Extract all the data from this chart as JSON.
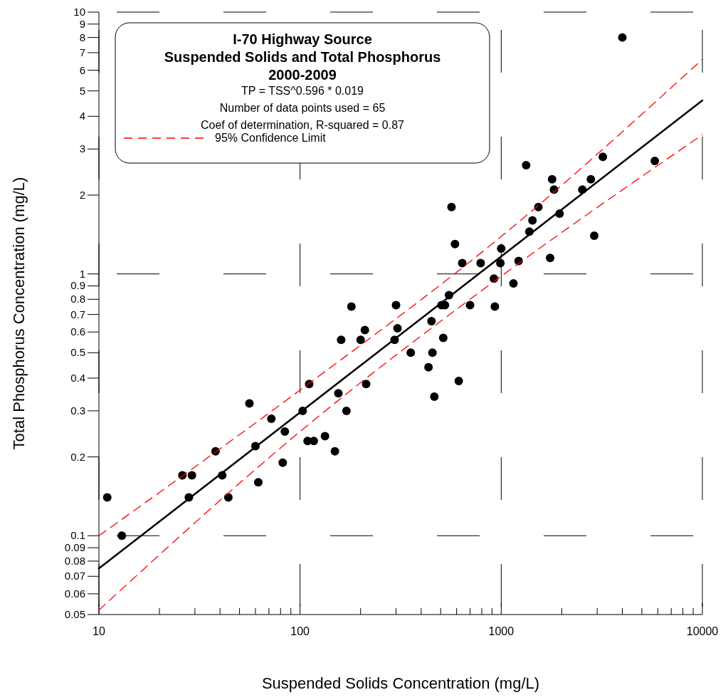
{
  "chart_data": {
    "type": "scatter",
    "title": "I-70 Highway Source\nSuspended Solids and Total Phosphorus\n2000-2009",
    "annotations": [
      "TP = TSS^0.596 * 0.019",
      "Number of data points used = 65",
      "Coef of determination, R-squared = 0.87"
    ],
    "xlabel": "Suspended Solids Concentration (mg/L)",
    "ylabel": "Total Phosphorus Concentration (mg/L)",
    "log": "xy",
    "grid": true,
    "legend": "top left",
    "marker": "circle",
    "xlim": [
      10,
      10000
    ],
    "ylim": [
      0.05,
      10
    ],
    "xticks": [
      10,
      {
        "value": 20,
        "label": null
      },
      {
        "value": 30,
        "label": null
      },
      {
        "value": 40,
        "label": null
      },
      {
        "value": 50,
        "label": null
      },
      {
        "value": 60,
        "label": null
      },
      {
        "value": 70,
        "label": null
      },
      {
        "value": 80,
        "label": null
      },
      {
        "value": 90,
        "label": null
      },
      100,
      {
        "value": 200,
        "label": null
      },
      {
        "value": 300,
        "label": null
      },
      {
        "value": 400,
        "label": null
      },
      {
        "value": 500,
        "label": null
      },
      {
        "value": 600,
        "label": null
      },
      {
        "value": 700,
        "label": null
      },
      {
        "value": 800,
        "label": null
      },
      {
        "value": 900,
        "label": null
      },
      1000,
      {
        "value": 2000,
        "label": null
      },
      {
        "value": 3000,
        "label": null
      },
      {
        "value": 4000,
        "label": null
      },
      {
        "value": 5000,
        "label": null
      },
      {
        "value": 6000,
        "label": null
      },
      {
        "value": 7000,
        "label": null
      },
      {
        "value": 8000,
        "label": null
      },
      {
        "value": 9000,
        "label": null
      },
      10000
    ],
    "yticks": [
      0.05,
      0.06,
      0.07,
      0.08,
      0.09,
      0.1,
      0.2,
      0.3,
      0.4,
      0.5,
      0.6,
      0.7,
      0.8,
      0.9,
      1,
      2,
      3,
      4,
      5,
      6,
      7,
      8,
      9,
      10
    ],
    "series": [
      {
        "color": "#000000",
        "x": [
          11,
          13,
          26,
          29,
          28,
          38,
          41,
          44,
          56,
          60,
          62,
          72,
          82,
          84,
          103,
          109,
          117,
          133,
          149,
          4000,
          1330,
          3200,
          5800,
          1790,
          2790,
          1830,
          2530,
          566,
          1530,
          1950,
          1430,
          1380,
          2900,
          589,
          1000,
          1750,
          640,
          790,
          990,
          1220,
          920,
          1150,
          550,
          505,
          525,
          700,
          930,
          300,
          180,
          450,
          305,
          210,
          160,
          200,
          295,
          515,
          355,
          455,
          435,
          111,
          213,
          615,
          155,
          465,
          170
        ],
        "values": [
          0.14,
          0.1,
          0.17,
          0.17,
          0.14,
          0.21,
          0.17,
          0.14,
          0.32,
          0.22,
          0.16,
          0.28,
          0.19,
          0.25,
          0.3,
          0.23,
          0.23,
          0.24,
          0.21,
          8.0,
          2.6,
          2.8,
          2.7,
          2.3,
          2.3,
          2.1,
          2.1,
          1.8,
          1.8,
          1.7,
          1.6,
          1.45,
          1.4,
          1.3,
          1.25,
          1.15,
          1.1,
          1.1,
          1.1,
          1.12,
          0.96,
          0.92,
          0.83,
          0.76,
          0.76,
          0.76,
          0.75,
          0.76,
          0.75,
          0.66,
          0.62,
          0.61,
          0.56,
          0.56,
          0.56,
          0.57,
          0.5,
          0.5,
          0.44,
          0.38,
          0.38,
          0.39,
          0.35,
          0.34,
          0.3
        ]
      },
      {
        "type": "line",
        "color": "#000000",
        "line_style": "solid",
        "marker": "none",
        "x": [
          10,
          10000
        ],
        "values": [
          0.075,
          4.6
        ]
      },
      {
        "type": "line",
        "name": "95% Confidence Limit",
        "color": "#ff0000",
        "line_style": "dashed",
        "marker": "none",
        "x": [
          10,
          100,
          1000,
          10000
        ],
        "values": [
          0.1,
          0.36,
          1.39,
          6.6
        ]
      },
      {
        "type": "line",
        "color": "#ff0000",
        "line_style": "dashed",
        "marker": "none",
        "x": [
          10,
          100,
          1000,
          10000
        ],
        "values": [
          0.052,
          0.25,
          0.98,
          3.4
        ]
      }
    ]
  }
}
